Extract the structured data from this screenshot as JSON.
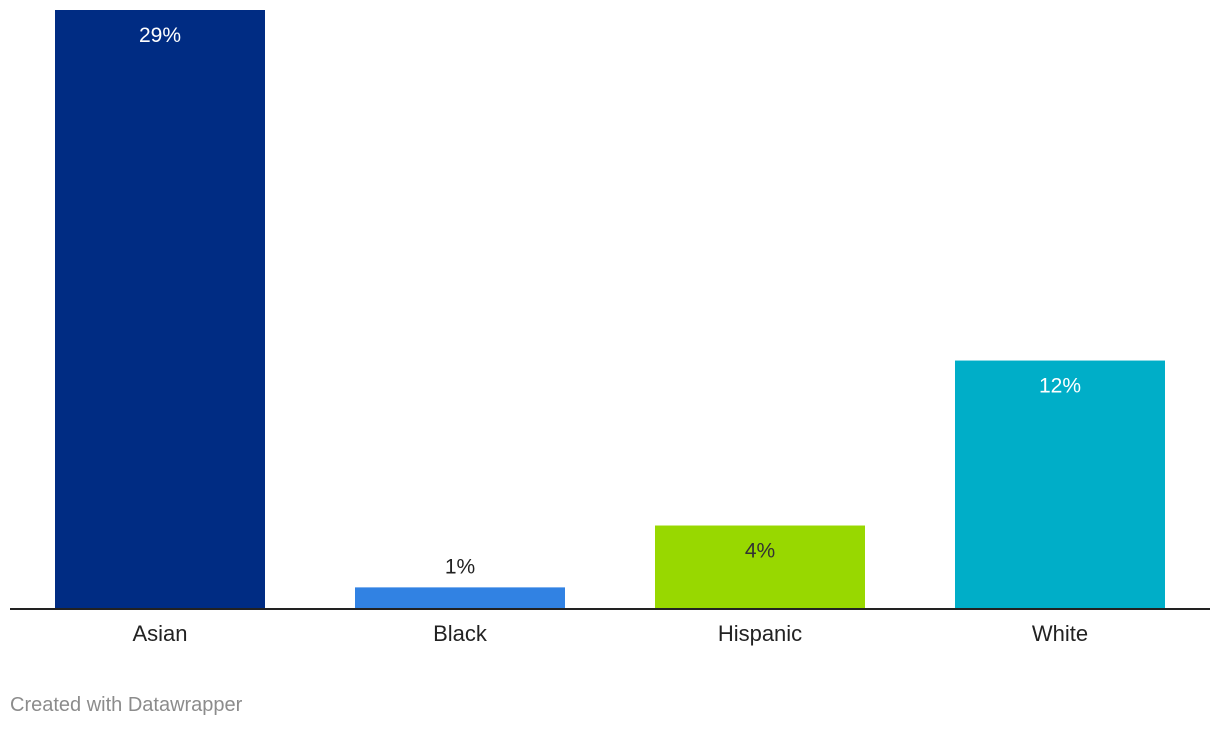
{
  "chart_data": {
    "type": "bar",
    "categories": [
      "Asian",
      "Black",
      "Hispanic",
      "White"
    ],
    "values": [
      29,
      1,
      4,
      12
    ],
    "value_labels": [
      "29%",
      "1%",
      "4%",
      "12%"
    ],
    "colors": [
      "#002c83",
      "#3182e3",
      "#98d800",
      "#00aec8"
    ],
    "label_colors": [
      "#ffffff",
      "#222222",
      "#333333",
      "#ffffff"
    ],
    "label_inside": [
      true,
      false,
      true,
      true
    ],
    "axis_color": "#222222",
    "ylim": [
      0,
      29
    ],
    "title": "",
    "xlabel": "",
    "ylabel": "",
    "grid": false,
    "legend": "none"
  },
  "footer": {
    "credit": "Created with Datawrapper"
  }
}
